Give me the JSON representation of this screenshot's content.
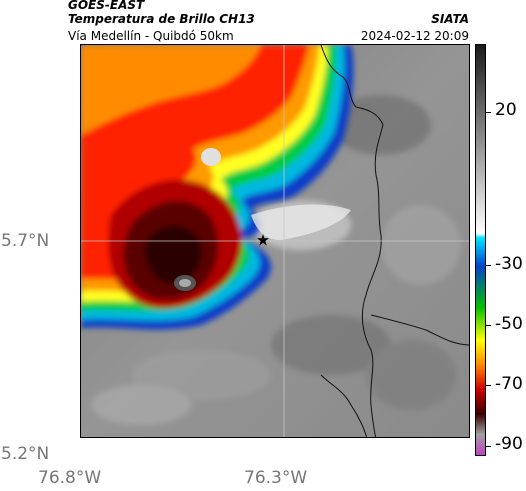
{
  "header": {
    "satellite": "GOES-EAST",
    "product": "Temperatura de Brillo CH13",
    "region": "Vía Medellín - Quibdó 50km",
    "agency": "SIATA",
    "timestamp": "2024-02-12 20:09"
  },
  "map": {
    "y_labels": [
      "5.7°N",
      "5.2°N"
    ],
    "x_labels": [
      "76.8°W",
      "76.3°W"
    ],
    "marker_icon": "star-icon"
  },
  "colorbar": {
    "ticks": [
      "20",
      "-30",
      "-50",
      "-70",
      "-90"
    ],
    "colors": [
      "#1a1a1a",
      "#ffffff",
      "#00e5ff",
      "#0044cc",
      "#00c000",
      "#ffff00",
      "#ff8800",
      "#d00000",
      "#3a0000",
      "#a0a0a0",
      "#c040c0"
    ]
  }
}
